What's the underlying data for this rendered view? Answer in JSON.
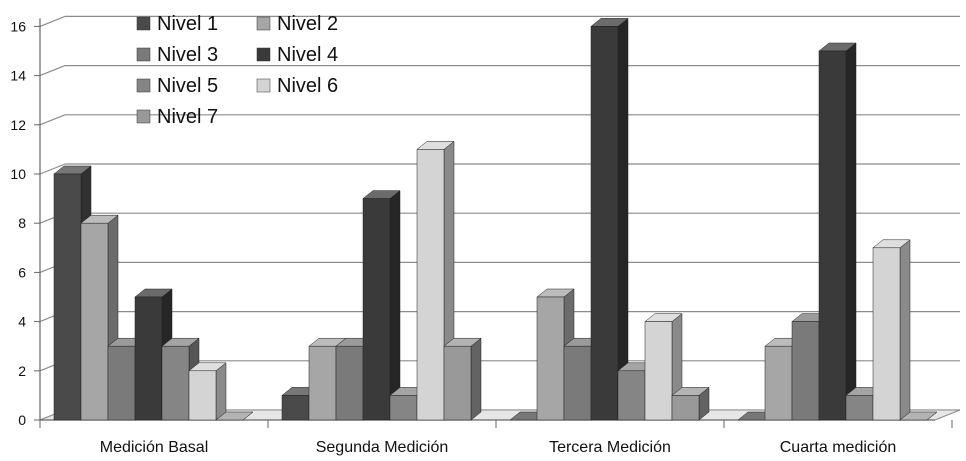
{
  "chart_data": {
    "type": "bar",
    "variant": "3d-clustered-column",
    "categories": [
      "Medición Basal",
      "Segunda Medición",
      "Tercera Medición",
      "Cuarta medición"
    ],
    "series": [
      {
        "name": "Nivel 1",
        "values": [
          10,
          1,
          0,
          0
        ],
        "color": "#4a4a4a"
      },
      {
        "name": "Nivel 2",
        "values": [
          8,
          3,
          5,
          3
        ],
        "color": "#a6a6a6"
      },
      {
        "name": "Nivel 3",
        "values": [
          3,
          3,
          3,
          4
        ],
        "color": "#7a7a7a"
      },
      {
        "name": "Nivel 4",
        "values": [
          5,
          9,
          16,
          15
        ],
        "color": "#3a3a3a"
      },
      {
        "name": "Nivel 5",
        "values": [
          3,
          1,
          2,
          1
        ],
        "color": "#858585"
      },
      {
        "name": "Nivel 6",
        "values": [
          2,
          11,
          4,
          7
        ],
        "color": "#d4d4d4"
      },
      {
        "name": "Nivel 7",
        "values": [
          0,
          3,
          1,
          0
        ],
        "color": "#999999"
      }
    ],
    "y_ticks": [
      "0",
      "2",
      "4",
      "6",
      "8",
      "10",
      "12",
      "14",
      "16"
    ],
    "ylim": [
      0,
      16
    ],
    "grid": true,
    "legend_position": "top-left"
  }
}
